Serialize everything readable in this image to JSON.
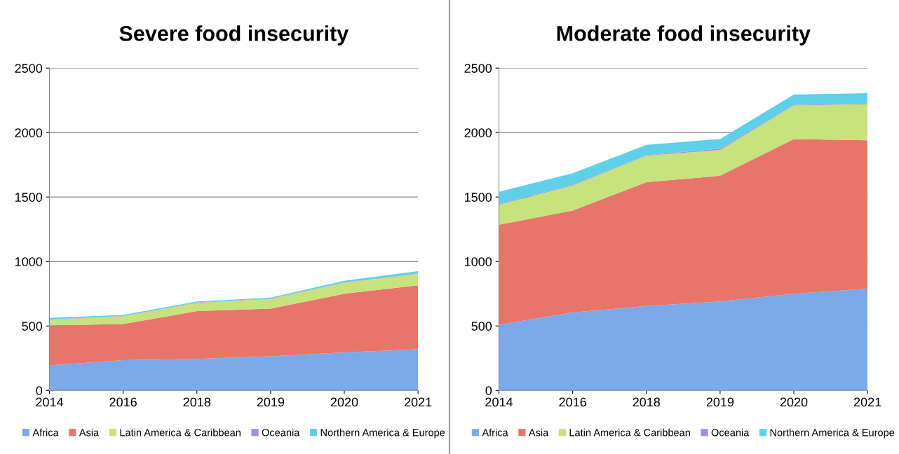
{
  "chart_data": [
    {
      "type": "area",
      "title": "Severe food insecurity",
      "stacked": true,
      "categories": [
        "2014",
        "2016",
        "2018",
        "2019",
        "2020",
        "2021"
      ],
      "ylim": [
        0,
        2500
      ],
      "yticks": [
        0,
        500,
        1000,
        1500,
        2000,
        2500
      ],
      "grid": "y",
      "legend": "bottom",
      "series": [
        {
          "name": "Africa",
          "color": "#7aaaea",
          "values": [
            195,
            235,
            245,
            265,
            295,
            320
          ]
        },
        {
          "name": "Asia",
          "color": "#e8756a",
          "values": [
            310,
            280,
            370,
            370,
            455,
            495
          ]
        },
        {
          "name": "Latin America & Caribbean",
          "color": "#c8e27e",
          "values": [
            43,
            60,
            65,
            75,
            85,
            90
          ]
        },
        {
          "name": "Oceania",
          "color": "#a98bd6",
          "values": [
            3,
            3,
            3,
            3,
            3,
            3
          ]
        },
        {
          "name": "Northern America & Europe",
          "color": "#5ed0e8",
          "values": [
            12,
            7,
            7,
            7,
            12,
            17
          ]
        }
      ]
    },
    {
      "type": "area",
      "title": "Moderate food insecurity",
      "stacked": true,
      "categories": [
        "2014",
        "2016",
        "2018",
        "2019",
        "2020",
        "2021"
      ],
      "ylim": [
        0,
        2500
      ],
      "yticks": [
        0,
        500,
        1000,
        1500,
        2000,
        2500
      ],
      "grid": "y",
      "legend": "bottom",
      "series": [
        {
          "name": "Africa",
          "color": "#7aaaea",
          "values": [
            510,
            605,
            655,
            690,
            750,
            790
          ]
        },
        {
          "name": "Asia",
          "color": "#e8756a",
          "values": [
            775,
            790,
            960,
            975,
            1200,
            1150
          ]
        },
        {
          "name": "Latin America & Caribbean",
          "color": "#c8e27e",
          "values": [
            155,
            195,
            205,
            200,
            260,
            280
          ]
        },
        {
          "name": "Oceania",
          "color": "#a98bd6",
          "values": [
            5,
            5,
            5,
            10,
            5,
            5
          ]
        },
        {
          "name": "Northern America & Europe",
          "color": "#5ed0e8",
          "values": [
            95,
            90,
            80,
            75,
            80,
            80
          ]
        }
      ]
    }
  ]
}
